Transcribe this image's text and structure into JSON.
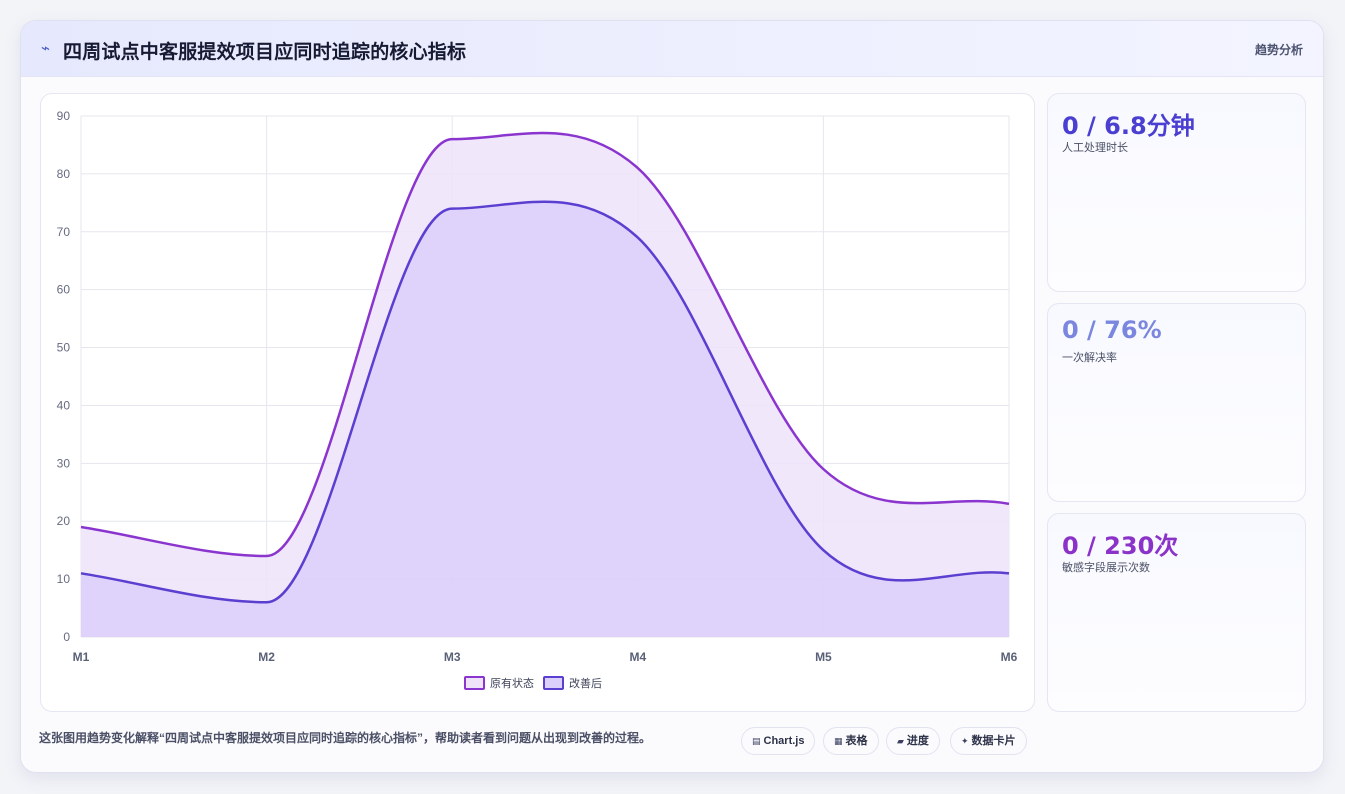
{
  "header": {
    "icon": "trend-line-icon",
    "title": "四周试点中客服提效项目应同时追踪的核心指标",
    "tag": "趋势分析"
  },
  "stats": [
    {
      "value": "0 / 6.8分钟",
      "label": "人工处理时长",
      "color": "#4b3fd1"
    },
    {
      "value": "0 / 76%",
      "label": "一次解决率",
      "color": "#7b86df"
    },
    {
      "value": "0 / 230次",
      "label": "敏感字段展示次数",
      "color": "#8b33c9"
    }
  ],
  "footer": {
    "text": "这张图用趋势变化解释“四周试点中客服提效项目应同时追踪的核心指标”，帮助读者看到问题从出现到改善的过程。",
    "pills": [
      {
        "icon": "chart-icon",
        "glyph": "▤",
        "label": "Chart.js"
      },
      {
        "icon": "table-icon",
        "glyph": "▦",
        "label": "表格"
      },
      {
        "icon": "progress-icon",
        "glyph": "▰",
        "label": "进度"
      },
      {
        "icon": "sparkle-icon",
        "glyph": "✦",
        "label": "数据卡片"
      }
    ]
  },
  "chart_data": {
    "type": "area",
    "categories": [
      "M1",
      "M2",
      "M3",
      "M4",
      "M5",
      "M6"
    ],
    "series": [
      {
        "name": "原有状态",
        "color": "#8b35cf",
        "fill": "#efe3fa",
        "values": [
          19,
          14,
          86,
          81,
          29,
          23
        ]
      },
      {
        "name": "改善后",
        "color": "#5a3fd0",
        "fill": "#dccffa",
        "values": [
          11,
          6,
          74,
          69,
          15,
          11
        ]
      }
    ],
    "ylim": [
      0,
      90
    ],
    "yticks": [
      0,
      10,
      20,
      30,
      40,
      50,
      60,
      70,
      80,
      90
    ],
    "grid": true,
    "legend": "bottom",
    "smooth": true
  }
}
